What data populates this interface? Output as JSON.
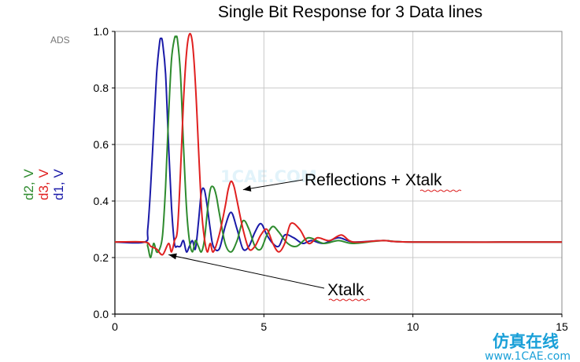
{
  "chart_data": {
    "type": "line",
    "title": "Single Bit Response for 3 Data lines",
    "software_label": "ADS",
    "xlabel": "",
    "ylabel_parts": [
      {
        "text": "d2, V",
        "color": "#2e8b2e"
      },
      {
        "text": "d3, V",
        "color": "#e02020"
      },
      {
        "text": "d1, V",
        "color": "#1a1aa8"
      }
    ],
    "xlim": [
      0,
      15
    ],
    "ylim": [
      0,
      1.0
    ],
    "xticks": [
      "0",
      "5",
      "10",
      "15"
    ],
    "yticks": [
      "0.0",
      "0.2",
      "0.4",
      "0.6",
      "0.8",
      "1.0"
    ],
    "grid": true,
    "series": [
      {
        "name": "d1, V",
        "color": "#1a1aa8",
        "x": [
          0,
          1.0,
          1.1,
          1.2,
          1.3,
          1.4,
          1.5,
          1.55,
          1.6,
          1.7,
          1.8,
          1.9,
          2.0,
          2.1,
          2.2,
          2.3,
          2.4,
          2.5,
          2.6,
          2.7,
          2.8,
          2.9,
          3.0,
          3.1,
          3.2,
          3.3,
          3.5,
          3.7,
          3.9,
          4.1,
          4.3,
          4.5,
          4.7,
          4.9,
          5.1,
          5.3,
          5.5,
          5.7,
          6.0,
          6.3,
          6.6,
          7.0,
          7.5,
          8.0,
          9.0,
          10.0,
          15.0
        ],
        "y": [
          0.255,
          0.255,
          0.3,
          0.45,
          0.65,
          0.85,
          0.96,
          0.975,
          0.96,
          0.85,
          0.6,
          0.38,
          0.25,
          0.24,
          0.24,
          0.26,
          0.22,
          0.24,
          0.26,
          0.23,
          0.32,
          0.43,
          0.44,
          0.38,
          0.3,
          0.24,
          0.23,
          0.31,
          0.36,
          0.3,
          0.23,
          0.24,
          0.29,
          0.32,
          0.28,
          0.25,
          0.24,
          0.28,
          0.27,
          0.25,
          0.26,
          0.25,
          0.27,
          0.255,
          0.26,
          0.255,
          0.255
        ]
      },
      {
        "name": "d2, V",
        "color": "#2e8b2e",
        "x": [
          0,
          1.0,
          1.1,
          1.2,
          1.3,
          1.4,
          1.5,
          1.6,
          1.7,
          1.8,
          1.9,
          2.0,
          2.05,
          2.1,
          2.2,
          2.3,
          2.4,
          2.5,
          2.6,
          2.7,
          2.8,
          2.9,
          3.0,
          3.1,
          3.2,
          3.3,
          3.4,
          3.5,
          3.7,
          3.9,
          4.1,
          4.3,
          4.5,
          4.7,
          4.9,
          5.1,
          5.3,
          5.5,
          5.8,
          6.1,
          6.5,
          7.0,
          7.5,
          8.0,
          9.0,
          10.0,
          15.0
        ],
        "y": [
          0.255,
          0.255,
          0.24,
          0.2,
          0.25,
          0.22,
          0.23,
          0.28,
          0.45,
          0.7,
          0.9,
          0.975,
          0.98,
          0.97,
          0.85,
          0.6,
          0.38,
          0.26,
          0.22,
          0.26,
          0.24,
          0.22,
          0.26,
          0.36,
          0.44,
          0.45,
          0.42,
          0.36,
          0.25,
          0.22,
          0.26,
          0.33,
          0.3,
          0.24,
          0.23,
          0.28,
          0.31,
          0.29,
          0.25,
          0.24,
          0.27,
          0.25,
          0.26,
          0.25,
          0.26,
          0.255,
          0.255
        ]
      },
      {
        "name": "d3, V",
        "color": "#e02020",
        "x": [
          0,
          1.0,
          1.2,
          1.4,
          1.6,
          1.8,
          1.9,
          2.0,
          2.1,
          2.2,
          2.3,
          2.4,
          2.5,
          2.6,
          2.7,
          2.8,
          2.9,
          3.0,
          3.1,
          3.2,
          3.3,
          3.5,
          3.7,
          3.8,
          3.9,
          4.0,
          4.1,
          4.3,
          4.5,
          4.7,
          4.9,
          5.1,
          5.3,
          5.5,
          5.7,
          5.9,
          6.2,
          6.5,
          6.8,
          7.2,
          7.6,
          8.0,
          9.0,
          10.0,
          15.0
        ],
        "y": [
          0.255,
          0.255,
          0.24,
          0.23,
          0.21,
          0.25,
          0.22,
          0.26,
          0.3,
          0.5,
          0.75,
          0.92,
          0.99,
          0.96,
          0.82,
          0.6,
          0.38,
          0.27,
          0.22,
          0.25,
          0.22,
          0.28,
          0.38,
          0.44,
          0.47,
          0.45,
          0.4,
          0.3,
          0.23,
          0.24,
          0.28,
          0.3,
          0.25,
          0.22,
          0.25,
          0.32,
          0.3,
          0.25,
          0.27,
          0.26,
          0.28,
          0.255,
          0.26,
          0.255,
          0.255
        ]
      }
    ],
    "annotations": [
      {
        "text": "Reflections + Xtalk",
        "target": [
          4.3,
          0.44
        ]
      },
      {
        "text": "Xtalk",
        "target": [
          1.8,
          0.21
        ]
      }
    ],
    "watermark": {
      "text": "1CAE.COM",
      "footer_cn": "仿真在线",
      "footer_url": "www.1CAE.com"
    }
  }
}
